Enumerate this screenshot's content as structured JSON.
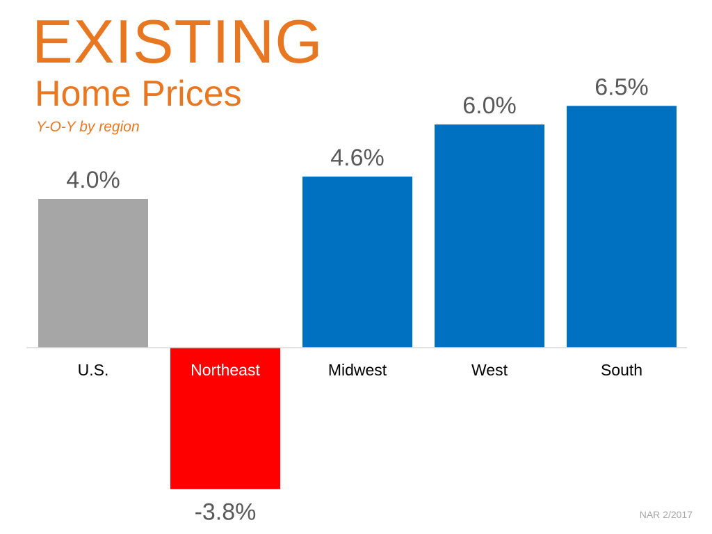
{
  "header": {
    "title": "EXISTING",
    "subtitle": "Home Prices",
    "note": "Y-O-Y by region"
  },
  "footer": {
    "source": "NAR 2/2017"
  },
  "chart_data": {
    "type": "bar",
    "categories": [
      "U.S.",
      "Northeast",
      "Midwest",
      "West",
      "South"
    ],
    "values": [
      4.0,
      -3.8,
      4.6,
      6.0,
      6.5
    ],
    "value_labels": [
      "4.0%",
      "-3.8%",
      "4.6%",
      "6.0%",
      "6.5%"
    ],
    "bar_colors": [
      "#A6A6A6",
      "#FF0000",
      "#0070C0",
      "#0070C0",
      "#0070C0"
    ],
    "category_label_colors": [
      "#000000",
      "#ffffff",
      "#000000",
      "#000000",
      "#000000"
    ],
    "value_label_color": "#595959",
    "axis_color": "#d9d9d9",
    "unit": "%",
    "ylim": [
      -3.8,
      6.5
    ],
    "grid": false,
    "legend": "none"
  }
}
